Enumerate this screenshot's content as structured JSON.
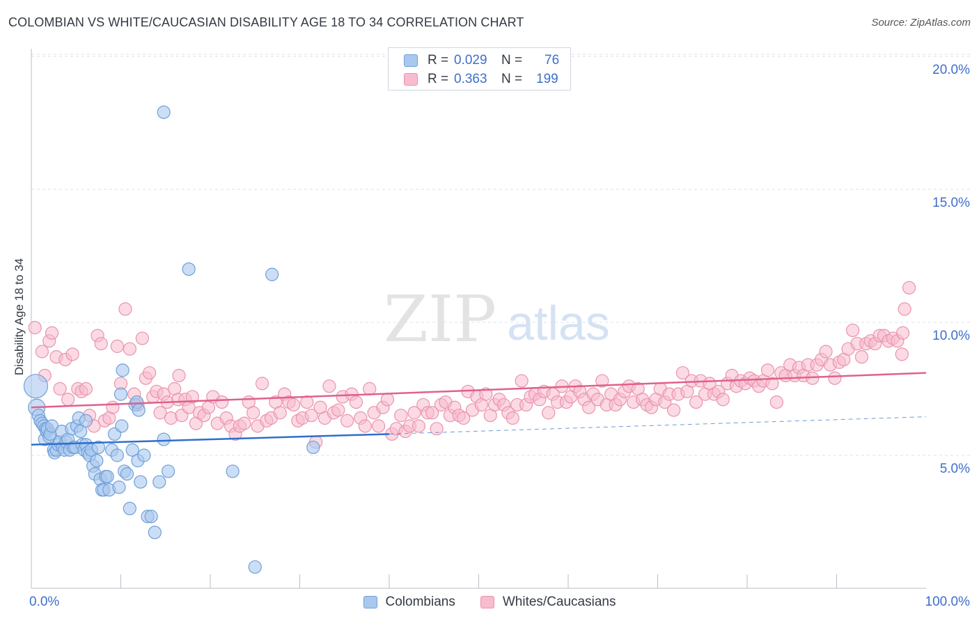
{
  "title": "COLOMBIAN VS WHITE/CAUCASIAN DISABILITY AGE 18 TO 34 CORRELATION CHART",
  "source": "Source: ZipAtlas.com",
  "watermark": {
    "zip": "ZIP",
    "atlas": "atlas"
  },
  "colors": {
    "blue_fill": "#aac8ee",
    "blue_stroke": "#6f9fd8",
    "blue_line": "#2e6fcb",
    "pink_fill": "#f7bccd",
    "pink_stroke": "#e993ad",
    "pink_line": "#e0608d",
    "grid": "#dde2e8",
    "tick_label": "#3d6fc9"
  },
  "legend": {
    "rows": [
      {
        "r_label": "R =",
        "r_value": "0.029",
        "n_label": "N =",
        "n_value": "76"
      },
      {
        "r_label": "R =",
        "r_value": "0.363",
        "n_label": "N =",
        "n_value": "199"
      }
    ]
  },
  "bottom_legend": [
    "Colombians",
    "Whites/Caucasians"
  ],
  "chart_data": {
    "type": "scatter",
    "title": "COLOMBIAN VS WHITE/CAUCASIAN DISABILITY AGE 18 TO 34 CORRELATION CHART",
    "xlabel": "",
    "ylabel": "Disability Age 18 to 34",
    "xlim": [
      0,
      100
    ],
    "ylim": [
      0,
      20.5
    ],
    "x_tick_labels": [
      "0.0%",
      "100.0%"
    ],
    "y_ticks": [
      5,
      10,
      15,
      20
    ],
    "y_tick_labels": [
      "5.0%",
      "10.0%",
      "15.0%",
      "20.0%"
    ],
    "grid": true,
    "legend_position": "top-center",
    "series": [
      {
        "name": "Colombians",
        "r": 0.029,
        "n": 76,
        "trend": {
          "x0": 0,
          "y0": 5.4,
          "x1": 40,
          "y1": 5.8,
          "dashed_to_x": 100,
          "dashed_to_y": 6.45
        },
        "points": [
          [
            0.5,
            7.6
          ],
          [
            0.6,
            6.8
          ],
          [
            0.8,
            6.5
          ],
          [
            1.0,
            6.3
          ],
          [
            1.2,
            6.2
          ],
          [
            1.4,
            6.1
          ],
          [
            1.5,
            5.6
          ],
          [
            1.6,
            6.0
          ],
          [
            1.7,
            5.9
          ],
          [
            1.8,
            6.0
          ],
          [
            2.0,
            5.7
          ],
          [
            2.1,
            5.8
          ],
          [
            2.3,
            6.1
          ],
          [
            2.5,
            5.2
          ],
          [
            2.6,
            5.1
          ],
          [
            2.8,
            5.2
          ],
          [
            3.0,
            5.4
          ],
          [
            3.2,
            5.5
          ],
          [
            3.4,
            5.9
          ],
          [
            3.5,
            5.3
          ],
          [
            3.7,
            5.2
          ],
          [
            3.9,
            5.5
          ],
          [
            4.1,
            5.6
          ],
          [
            4.3,
            5.2
          ],
          [
            4.5,
            6.0
          ],
          [
            4.7,
            5.3
          ],
          [
            4.9,
            5.3
          ],
          [
            5.1,
            6.1
          ],
          [
            5.3,
            6.4
          ],
          [
            5.5,
            5.9
          ],
          [
            5.7,
            5.4
          ],
          [
            5.9,
            5.2
          ],
          [
            6.1,
            5.4
          ],
          [
            6.3,
            5.1
          ],
          [
            6.5,
            5.0
          ],
          [
            6.7,
            5.2
          ],
          [
            6.9,
            4.6
          ],
          [
            7.1,
            4.3
          ],
          [
            7.3,
            4.8
          ],
          [
            7.5,
            5.3
          ],
          [
            7.7,
            4.1
          ],
          [
            7.9,
            3.7
          ],
          [
            8.1,
            3.7
          ],
          [
            8.3,
            4.2
          ],
          [
            8.5,
            4.2
          ],
          [
            8.7,
            3.7
          ],
          [
            9.0,
            5.2
          ],
          [
            9.3,
            5.8
          ],
          [
            9.6,
            5.0
          ],
          [
            9.8,
            3.8
          ],
          [
            10.1,
            6.1
          ],
          [
            10.4,
            4.4
          ],
          [
            10.7,
            4.3
          ],
          [
            11.0,
            3.0
          ],
          [
            11.3,
            5.2
          ],
          [
            11.6,
            6.9
          ],
          [
            11.9,
            4.8
          ],
          [
            12.2,
            4.0
          ],
          [
            12.6,
            5.0
          ],
          [
            13.0,
            2.7
          ],
          [
            13.4,
            2.7
          ],
          [
            13.8,
            2.1
          ],
          [
            14.3,
            4.0
          ],
          [
            14.8,
            5.6
          ],
          [
            15.3,
            4.4
          ],
          [
            10.2,
            8.2
          ],
          [
            10.0,
            7.3
          ],
          [
            11.8,
            7.0
          ],
          [
            12.0,
            6.7
          ],
          [
            6.1,
            6.3
          ],
          [
            14.8,
            17.9
          ],
          [
            17.6,
            12.0
          ],
          [
            26.9,
            11.8
          ],
          [
            22.5,
            4.4
          ],
          [
            25.0,
            0.8
          ],
          [
            31.5,
            5.3
          ]
        ]
      },
      {
        "name": "Whites/Caucasians",
        "r": 0.363,
        "n": 199,
        "trend": {
          "x0": 0,
          "y0": 6.8,
          "x1": 100,
          "y1": 8.1
        },
        "points": [
          [
            0.4,
            9.8
          ],
          [
            1.2,
            8.9
          ],
          [
            1.5,
            8.0
          ],
          [
            2.0,
            9.3
          ],
          [
            2.3,
            9.6
          ],
          [
            2.8,
            8.7
          ],
          [
            3.2,
            7.5
          ],
          [
            3.8,
            8.6
          ],
          [
            4.1,
            7.1
          ],
          [
            4.6,
            8.8
          ],
          [
            5.2,
            7.5
          ],
          [
            5.6,
            7.4
          ],
          [
            6.1,
            7.5
          ],
          [
            6.5,
            6.5
          ],
          [
            7.0,
            6.1
          ],
          [
            7.4,
            9.5
          ],
          [
            7.8,
            9.2
          ],
          [
            8.2,
            6.3
          ],
          [
            8.7,
            6.4
          ],
          [
            9.1,
            6.8
          ],
          [
            9.6,
            9.1
          ],
          [
            10.0,
            7.7
          ],
          [
            10.5,
            10.5
          ],
          [
            11.0,
            9.0
          ],
          [
            11.5,
            7.3
          ],
          [
            11.9,
            6.9
          ],
          [
            12.4,
            9.4
          ],
          [
            12.8,
            7.9
          ],
          [
            13.2,
            8.1
          ],
          [
            13.6,
            7.2
          ],
          [
            14.0,
            7.4
          ],
          [
            14.4,
            6.6
          ],
          [
            14.8,
            7.3
          ],
          [
            15.2,
            7.0
          ],
          [
            15.6,
            6.4
          ],
          [
            16.0,
            7.5
          ],
          [
            16.4,
            7.1
          ],
          [
            16.8,
            6.5
          ],
          [
            17.2,
            7.1
          ],
          [
            17.6,
            6.8
          ],
          [
            18.0,
            7.2
          ],
          [
            18.4,
            6.2
          ],
          [
            18.8,
            6.6
          ],
          [
            19.3,
            6.5
          ],
          [
            19.8,
            6.8
          ],
          [
            20.3,
            7.2
          ],
          [
            20.8,
            6.2
          ],
          [
            21.3,
            7.0
          ],
          [
            21.8,
            6.4
          ],
          [
            22.3,
            6.1
          ],
          [
            22.8,
            5.8
          ],
          [
            23.3,
            6.1
          ],
          [
            23.8,
            6.2
          ],
          [
            24.3,
            7.0
          ],
          [
            24.8,
            6.6
          ],
          [
            25.3,
            6.1
          ],
          [
            25.8,
            7.7
          ],
          [
            26.3,
            6.3
          ],
          [
            26.8,
            6.4
          ],
          [
            27.3,
            7.0
          ],
          [
            27.8,
            6.6
          ],
          [
            28.3,
            7.3
          ],
          [
            28.8,
            7.0
          ],
          [
            29.3,
            6.9
          ],
          [
            29.8,
            6.3
          ],
          [
            30.3,
            6.4
          ],
          [
            30.8,
            7.0
          ],
          [
            31.3,
            6.5
          ],
          [
            31.8,
            5.5
          ],
          [
            32.3,
            6.8
          ],
          [
            32.8,
            6.4
          ],
          [
            33.3,
            7.6
          ],
          [
            33.8,
            6.6
          ],
          [
            34.3,
            6.7
          ],
          [
            34.8,
            7.2
          ],
          [
            35.3,
            6.3
          ],
          [
            35.8,
            7.3
          ],
          [
            36.3,
            7.0
          ],
          [
            36.8,
            6.4
          ],
          [
            37.3,
            6.1
          ],
          [
            37.8,
            7.5
          ],
          [
            38.3,
            6.6
          ],
          [
            38.8,
            6.1
          ],
          [
            39.3,
            6.8
          ],
          [
            39.8,
            7.1
          ],
          [
            40.3,
            5.8
          ],
          [
            40.8,
            6.0
          ],
          [
            41.3,
            6.5
          ],
          [
            41.8,
            5.9
          ],
          [
            42.3,
            6.1
          ],
          [
            42.8,
            6.6
          ],
          [
            43.3,
            6.1
          ],
          [
            43.8,
            6.9
          ],
          [
            44.3,
            6.6
          ],
          [
            44.8,
            6.6
          ],
          [
            45.3,
            6.0
          ],
          [
            45.8,
            6.9
          ],
          [
            46.3,
            7.0
          ],
          [
            46.8,
            6.5
          ],
          [
            47.3,
            6.8
          ],
          [
            47.8,
            6.5
          ],
          [
            48.3,
            6.4
          ],
          [
            48.8,
            7.4
          ],
          [
            49.3,
            6.7
          ],
          [
            49.8,
            7.2
          ],
          [
            50.3,
            6.9
          ],
          [
            50.8,
            7.3
          ],
          [
            51.3,
            6.5
          ],
          [
            51.8,
            6.9
          ],
          [
            52.3,
            7.1
          ],
          [
            52.8,
            6.9
          ],
          [
            53.3,
            6.6
          ],
          [
            53.8,
            6.4
          ],
          [
            54.3,
            6.9
          ],
          [
            54.8,
            7.8
          ],
          [
            55.3,
            6.9
          ],
          [
            55.8,
            7.2
          ],
          [
            56.3,
            7.3
          ],
          [
            56.8,
            7.1
          ],
          [
            57.3,
            7.4
          ],
          [
            57.8,
            6.6
          ],
          [
            58.3,
            7.3
          ],
          [
            58.8,
            7.0
          ],
          [
            59.3,
            7.6
          ],
          [
            59.8,
            7.0
          ],
          [
            60.3,
            7.2
          ],
          [
            60.8,
            7.6
          ],
          [
            61.3,
            7.4
          ],
          [
            61.8,
            7.1
          ],
          [
            62.3,
            6.8
          ],
          [
            62.8,
            7.3
          ],
          [
            63.3,
            7.1
          ],
          [
            63.8,
            7.8
          ],
          [
            64.3,
            6.9
          ],
          [
            64.8,
            7.3
          ],
          [
            65.3,
            6.9
          ],
          [
            65.8,
            7.1
          ],
          [
            66.3,
            7.4
          ],
          [
            66.8,
            7.6
          ],
          [
            67.3,
            7.0
          ],
          [
            67.8,
            7.5
          ],
          [
            68.3,
            7.1
          ],
          [
            68.8,
            6.9
          ],
          [
            69.3,
            6.8
          ],
          [
            69.8,
            7.1
          ],
          [
            70.3,
            7.5
          ],
          [
            70.8,
            7.0
          ],
          [
            71.3,
            7.3
          ],
          [
            71.8,
            6.7
          ],
          [
            72.3,
            7.3
          ],
          [
            72.8,
            8.1
          ],
          [
            73.3,
            7.4
          ],
          [
            73.8,
            7.8
          ],
          [
            74.3,
            7.0
          ],
          [
            74.8,
            7.8
          ],
          [
            75.3,
            7.3
          ],
          [
            75.8,
            7.7
          ],
          [
            76.3,
            7.3
          ],
          [
            76.8,
            7.4
          ],
          [
            77.3,
            7.1
          ],
          [
            77.8,
            7.7
          ],
          [
            78.3,
            8.0
          ],
          [
            78.8,
            7.6
          ],
          [
            79.3,
            7.8
          ],
          [
            79.8,
            7.7
          ],
          [
            80.3,
            7.9
          ],
          [
            80.8,
            7.8
          ],
          [
            81.3,
            7.6
          ],
          [
            81.8,
            7.8
          ],
          [
            82.3,
            8.2
          ],
          [
            82.8,
            7.7
          ],
          [
            83.3,
            7.0
          ],
          [
            83.8,
            8.1
          ],
          [
            84.3,
            8.0
          ],
          [
            84.8,
            8.4
          ],
          [
            85.3,
            8.0
          ],
          [
            85.8,
            8.3
          ],
          [
            86.3,
            8.0
          ],
          [
            86.8,
            8.4
          ],
          [
            87.3,
            7.9
          ],
          [
            87.8,
            8.4
          ],
          [
            88.3,
            8.6
          ],
          [
            88.8,
            8.9
          ],
          [
            89.3,
            8.4
          ],
          [
            89.8,
            7.9
          ],
          [
            90.3,
            8.5
          ],
          [
            90.8,
            8.6
          ],
          [
            91.3,
            9.0
          ],
          [
            91.8,
            9.7
          ],
          [
            92.3,
            9.2
          ],
          [
            92.8,
            8.7
          ],
          [
            93.3,
            9.2
          ],
          [
            93.8,
            9.3
          ],
          [
            94.3,
            9.2
          ],
          [
            94.8,
            9.5
          ],
          [
            95.3,
            9.5
          ],
          [
            95.8,
            9.3
          ],
          [
            96.3,
            9.4
          ],
          [
            96.8,
            9.3
          ]
        ],
        "extra_points": [
          [
            97.3,
            8.8
          ],
          [
            97.6,
            10.5
          ],
          [
            98.1,
            11.3
          ],
          [
            97.4,
            9.6
          ],
          [
            16.5,
            8.0
          ]
        ]
      }
    ]
  }
}
